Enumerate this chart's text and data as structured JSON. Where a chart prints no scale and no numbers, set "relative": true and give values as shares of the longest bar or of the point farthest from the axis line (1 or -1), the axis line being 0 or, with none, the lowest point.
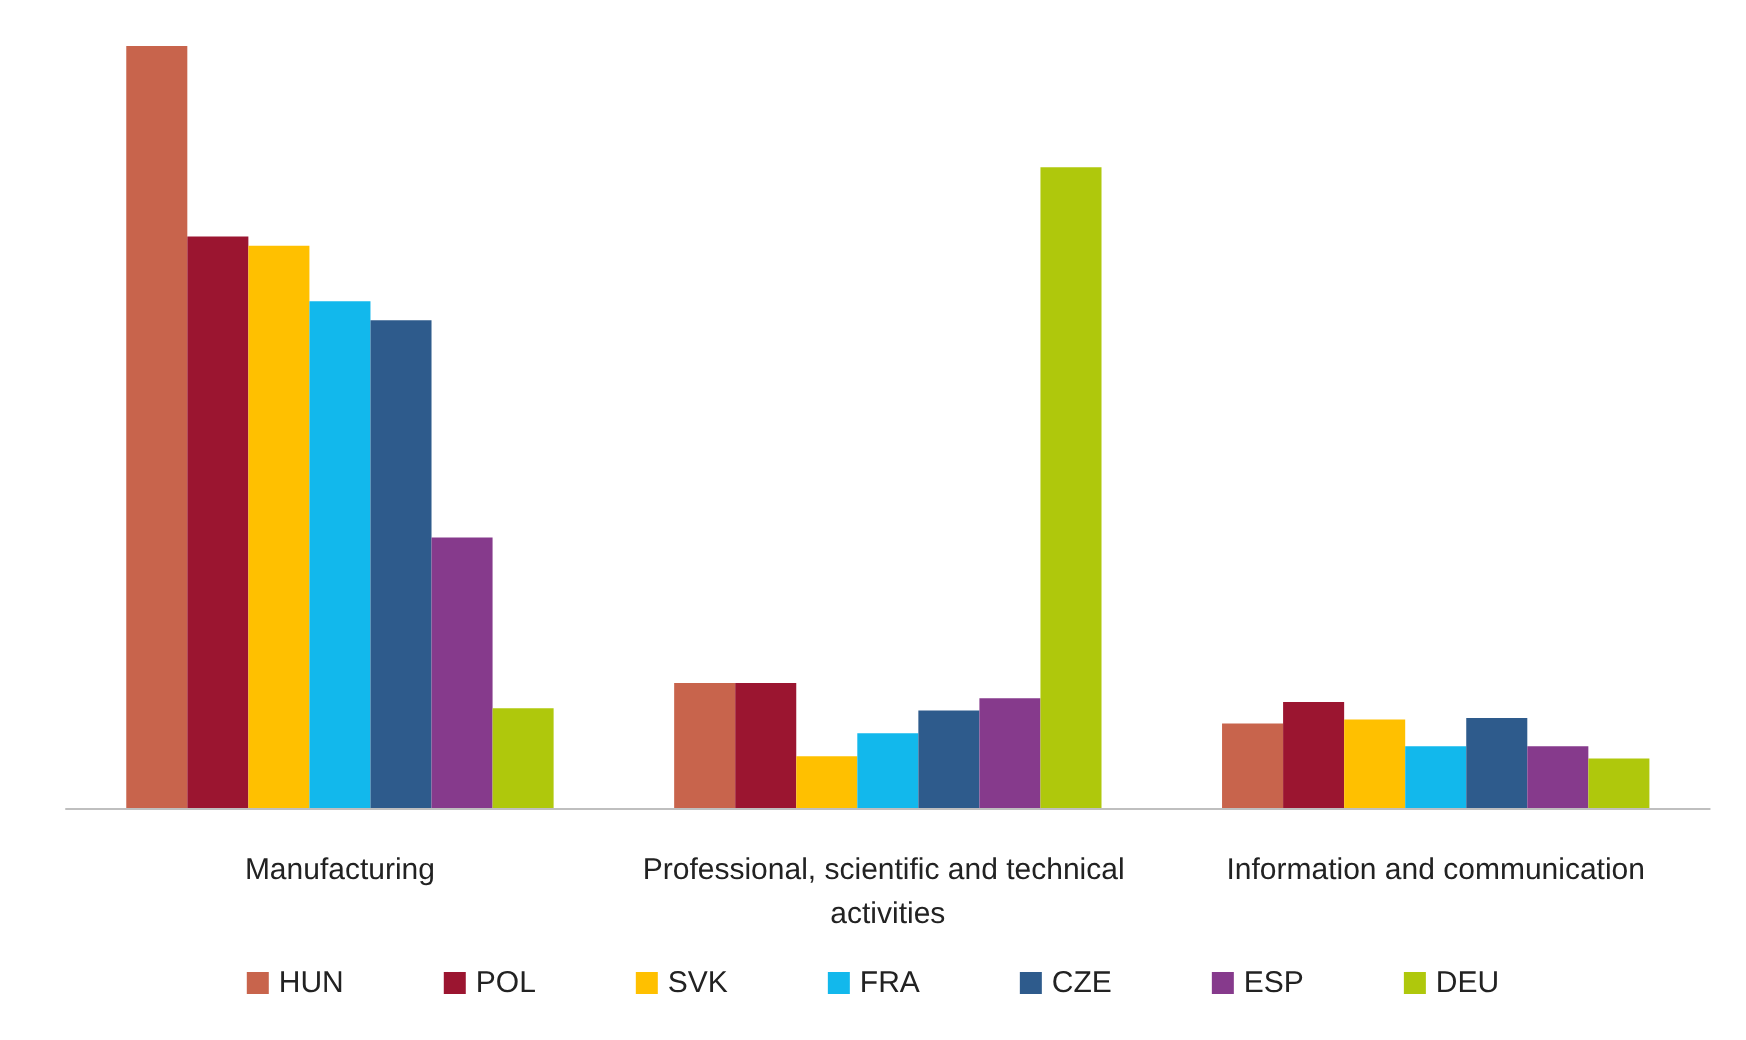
{
  "chart_data": {
    "type": "bar",
    "relative": true,
    "categories": [
      "Manufacturing",
      "Professional, scientific and technical activities",
      "Information and communication"
    ],
    "series": [
      {
        "name": "HUN",
        "color": "#c8644c",
        "values": [
          1.0,
          0.164,
          0.111
        ]
      },
      {
        "name": "POL",
        "color": "#9b1530",
        "values": [
          0.75,
          0.164,
          0.139
        ]
      },
      {
        "name": "SVK",
        "color": "#ffc000",
        "values": [
          0.738,
          0.068,
          0.116
        ]
      },
      {
        "name": "FRA",
        "color": "#12b8ec",
        "values": [
          0.665,
          0.098,
          0.081
        ]
      },
      {
        "name": "CZE",
        "color": "#2e5b8c",
        "values": [
          0.64,
          0.128,
          0.118
        ]
      },
      {
        "name": "ESP",
        "color": "#863a8c",
        "values": [
          0.355,
          0.144,
          0.081
        ]
      },
      {
        "name": "DEU",
        "color": "#afc80c",
        "values": [
          0.131,
          0.841,
          0.065
        ]
      }
    ],
    "legend": "bottom"
  }
}
